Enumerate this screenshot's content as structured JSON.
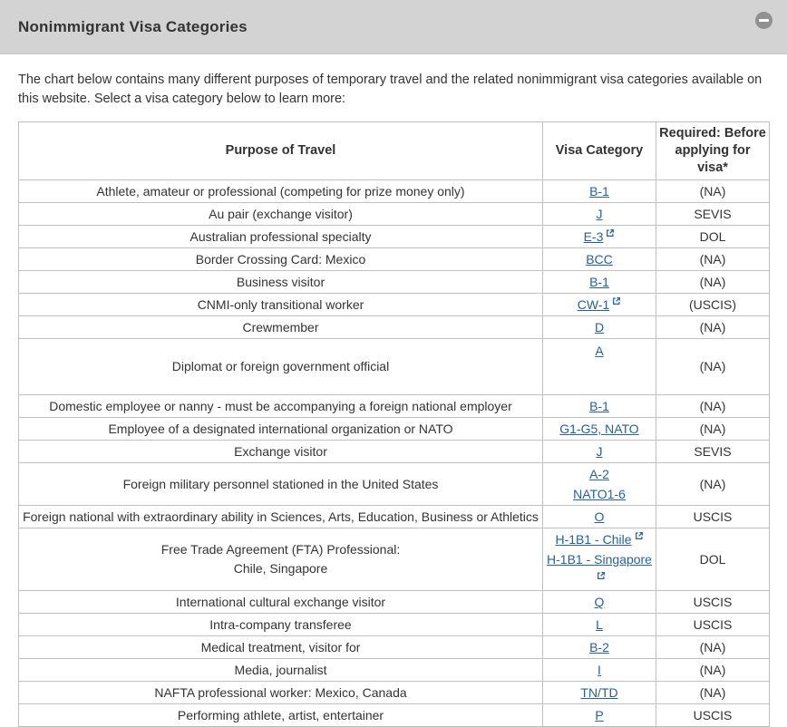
{
  "panel": {
    "title": "Nonimmigrant Visa Categories",
    "collapse_icon": "minus-in-circle"
  },
  "intro": "The chart below contains many different purposes of temporary travel and the related nonimmigrant visa categories available on this website. Select a visa category below to learn more:",
  "table": {
    "columns": [
      "Purpose of Travel",
      "Visa Category",
      "Required: Before applying for visa*"
    ],
    "rows": [
      {
        "purpose": "Athlete, amateur or professional (competing for prize money only)",
        "visas": [
          {
            "label": "B-1",
            "external": false
          }
        ],
        "required": "(NA)"
      },
      {
        "purpose": "Au pair (exchange visitor)",
        "visas": [
          {
            "label": "J",
            "external": false
          }
        ],
        "required": "SEVIS"
      },
      {
        "purpose": "Australian professional specialty",
        "visas": [
          {
            "label": "E-3",
            "external": true
          }
        ],
        "required": "DOL"
      },
      {
        "purpose": "Border Crossing Card: Mexico",
        "visas": [
          {
            "label": "BCC",
            "external": false
          }
        ],
        "required": "(NA)"
      },
      {
        "purpose": "Business visitor",
        "visas": [
          {
            "label": "B-1",
            "external": false
          }
        ],
        "required": "(NA)"
      },
      {
        "purpose": "CNMI-only transitional worker",
        "visas": [
          {
            "label": "CW-1",
            "external": true
          }
        ],
        "required": "(USCIS)"
      },
      {
        "purpose": "Crewmember",
        "visas": [
          {
            "label": "D",
            "external": false
          }
        ],
        "required": "(NA)"
      },
      {
        "purpose": "Diplomat or foreign government official",
        "visas": [
          {
            "label": "A",
            "external": false
          }
        ],
        "required": "(NA)",
        "tall": true
      },
      {
        "purpose": "Domestic employee or nanny - must be accompanying a foreign national employer",
        "visas": [
          {
            "label": "B-1",
            "external": false
          }
        ],
        "required": "(NA)"
      },
      {
        "purpose": "Employee of a designated international organization or NATO",
        "visas": [
          {
            "label": "G1-G5, NATO",
            "external": false
          }
        ],
        "required": "(NA)"
      },
      {
        "purpose": "Exchange visitor",
        "visas": [
          {
            "label": "J",
            "external": false
          }
        ],
        "required": "SEVIS"
      },
      {
        "purpose": "Foreign military personnel stationed in the United States",
        "visas": [
          {
            "label": "A-2",
            "external": false
          },
          {
            "label": "NATO1-6",
            "external": false
          }
        ],
        "required": "(NA)"
      },
      {
        "purpose": "Foreign national with extraordinary ability in Sciences, Arts, Education, Business or Athletics",
        "visas": [
          {
            "label": "O",
            "external": false
          }
        ],
        "required": "USCIS"
      },
      {
        "purpose": "Free Trade Agreement (FTA) Professional:\nChile, Singapore",
        "visas": [
          {
            "label": "H-1B1 - Chile",
            "external": true
          },
          {
            "label": "H-1B1 - Singapore",
            "external": true
          }
        ],
        "required": "DOL"
      },
      {
        "purpose": "International cultural exchange visitor",
        "visas": [
          {
            "label": "Q",
            "external": false
          }
        ],
        "required": "USCIS"
      },
      {
        "purpose": "Intra-company transferee",
        "visas": [
          {
            "label": "L",
            "external": false
          }
        ],
        "required": "USCIS"
      },
      {
        "purpose": "Medical treatment, visitor for",
        "visas": [
          {
            "label": "B-2",
            "external": false
          }
        ],
        "required": "(NA)"
      },
      {
        "purpose": "Media, journalist",
        "visas": [
          {
            "label": "I",
            "external": false
          }
        ],
        "required": "(NA)"
      },
      {
        "purpose": "NAFTA professional worker: Mexico, Canada",
        "visas": [
          {
            "label": "TN/TD",
            "external": false
          }
        ],
        "required": "(NA)"
      },
      {
        "purpose": "Performing athlete, artist, entertainer",
        "visas": [
          {
            "label": "P",
            "external": false
          }
        ],
        "required": "USCIS"
      }
    ]
  },
  "colors": {
    "link": "#26619c",
    "header_bg": "#d3d3d3",
    "border": "#c0c0c0",
    "text": "#333333"
  }
}
